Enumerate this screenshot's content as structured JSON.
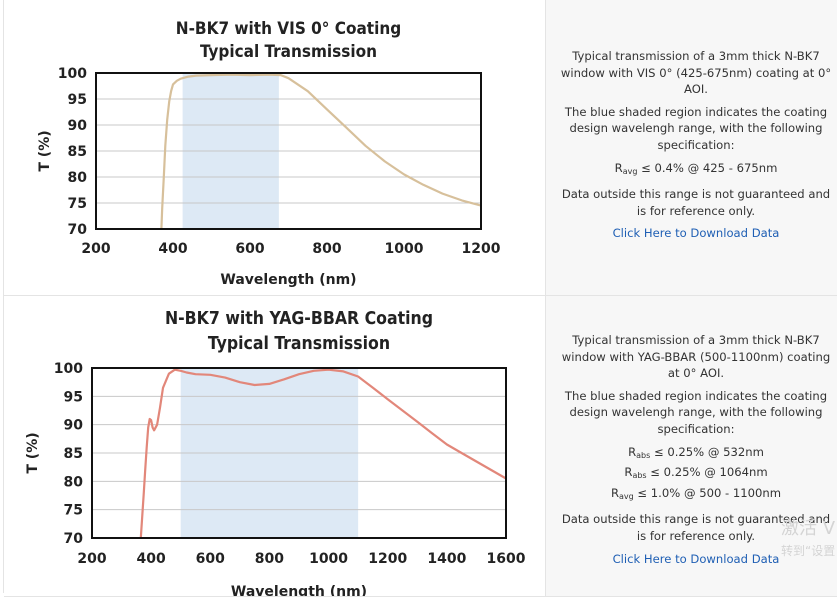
{
  "charts": [
    {
      "type": "line",
      "title": [
        "N-BK7 with VIS 0° Coating",
        "Typical Transmission"
      ],
      "xlabel": "Wavelength (nm)",
      "ylabel": "T (%)",
      "xlim": [
        200,
        1200
      ],
      "ylim": [
        70,
        100
      ],
      "xticks": [
        200,
        400,
        600,
        800,
        1000,
        1200
      ],
      "yticks": [
        70,
        75,
        80,
        85,
        90,
        95,
        100
      ],
      "shaded_range": [
        425,
        675
      ],
      "line_color": "#d7c09b",
      "shade_color": "#dde9f5",
      "grid": true,
      "series": [
        {
          "x": [
            370,
            372,
            376,
            380,
            385,
            390,
            395,
            400,
            410,
            420,
            440,
            460,
            500,
            550,
            600,
            650,
            680,
            700,
            750,
            800,
            850,
            900,
            950,
            1000,
            1050,
            1100,
            1150,
            1200
          ],
          "y": [
            70,
            74,
            80,
            86,
            91,
            94.5,
            96.5,
            97.8,
            98.5,
            98.9,
            99.3,
            99.5,
            99.6,
            99.7,
            99.6,
            99.7,
            99.6,
            99.0,
            96.5,
            93.0,
            89.5,
            86.0,
            83.0,
            80.5,
            78.5,
            76.8,
            75.5,
            74.5
          ]
        }
      ]
    },
    {
      "type": "line",
      "title": [
        "N-BK7 with YAG-BBAR Coating",
        "Typical Transmission"
      ],
      "xlabel": "Wavelength (nm)",
      "ylabel": "T (%)",
      "xlim": [
        200,
        1600
      ],
      "ylim": [
        70,
        100
      ],
      "xticks": [
        200,
        400,
        600,
        800,
        1000,
        1200,
        1400,
        1600
      ],
      "yticks": [
        70,
        75,
        80,
        85,
        90,
        95,
        100
      ],
      "shaded_range": [
        500,
        1100
      ],
      "line_color": "#e2877a",
      "shade_color": "#dde9f5",
      "grid": true,
      "series": [
        {
          "x": [
            365,
            370,
            375,
            380,
            385,
            390,
            395,
            400,
            405,
            410,
            420,
            430,
            440,
            460,
            480,
            500,
            520,
            550,
            600,
            650,
            700,
            750,
            800,
            850,
            900,
            950,
            1000,
            1050,
            1100,
            1150,
            1200,
            1250,
            1300,
            1350,
            1400,
            1450,
            1500,
            1550,
            1600
          ],
          "y": [
            70,
            74,
            78,
            82,
            86,
            89.5,
            91,
            90.8,
            89.5,
            89,
            90,
            93,
            96.5,
            99,
            99.7,
            99.5,
            99.2,
            98.9,
            98.8,
            98.3,
            97.5,
            97.0,
            97.2,
            98.0,
            98.9,
            99.5,
            99.7,
            99.4,
            98.5,
            96.5,
            94.5,
            92.5,
            90.5,
            88.5,
            86.5,
            85.0,
            83.5,
            82.0,
            80.5
          ]
        }
      ]
    }
  ],
  "descriptions": [
    {
      "p1": "Typical transmission of a 3mm thick N-BK7 window with VIS 0° (425-675nm) coating at 0° AOI.",
      "p2": "The blue shaded region indicates the coating design wavelengh range, with the following specification:",
      "specs": [
        {
          "sym": "R",
          "sub": "avg",
          "rest": " ≤ 0.4% @ 425 - 675nm"
        }
      ],
      "p3": "Data outside this range is not guaranteed and is for reference only.",
      "link": "Click Here to Download Data"
    },
    {
      "p1": "Typical transmission of a 3mm thick N-BK7 window with YAG-BBAR (500-1100nm) coating at 0° AOI.",
      "p2": "The blue shaded region indicates the coating design wavelengh range, with the following specification:",
      "specs": [
        {
          "sym": "R",
          "sub": "abs",
          "rest": " ≤ 0.25% @ 532nm"
        },
        {
          "sym": "R",
          "sub": "abs",
          "rest": " ≤ 0.25% @ 1064nm"
        },
        {
          "sym": "R",
          "sub": "avg",
          "rest": " ≤ 1.0% @ 500 - 1100nm"
        }
      ],
      "p3": "Data outside this range is not guaranteed and is for reference only.",
      "link": "Click Here to Download Data"
    }
  ],
  "watermark": {
    "line1": "激活 V",
    "line2": "转到“设置"
  }
}
